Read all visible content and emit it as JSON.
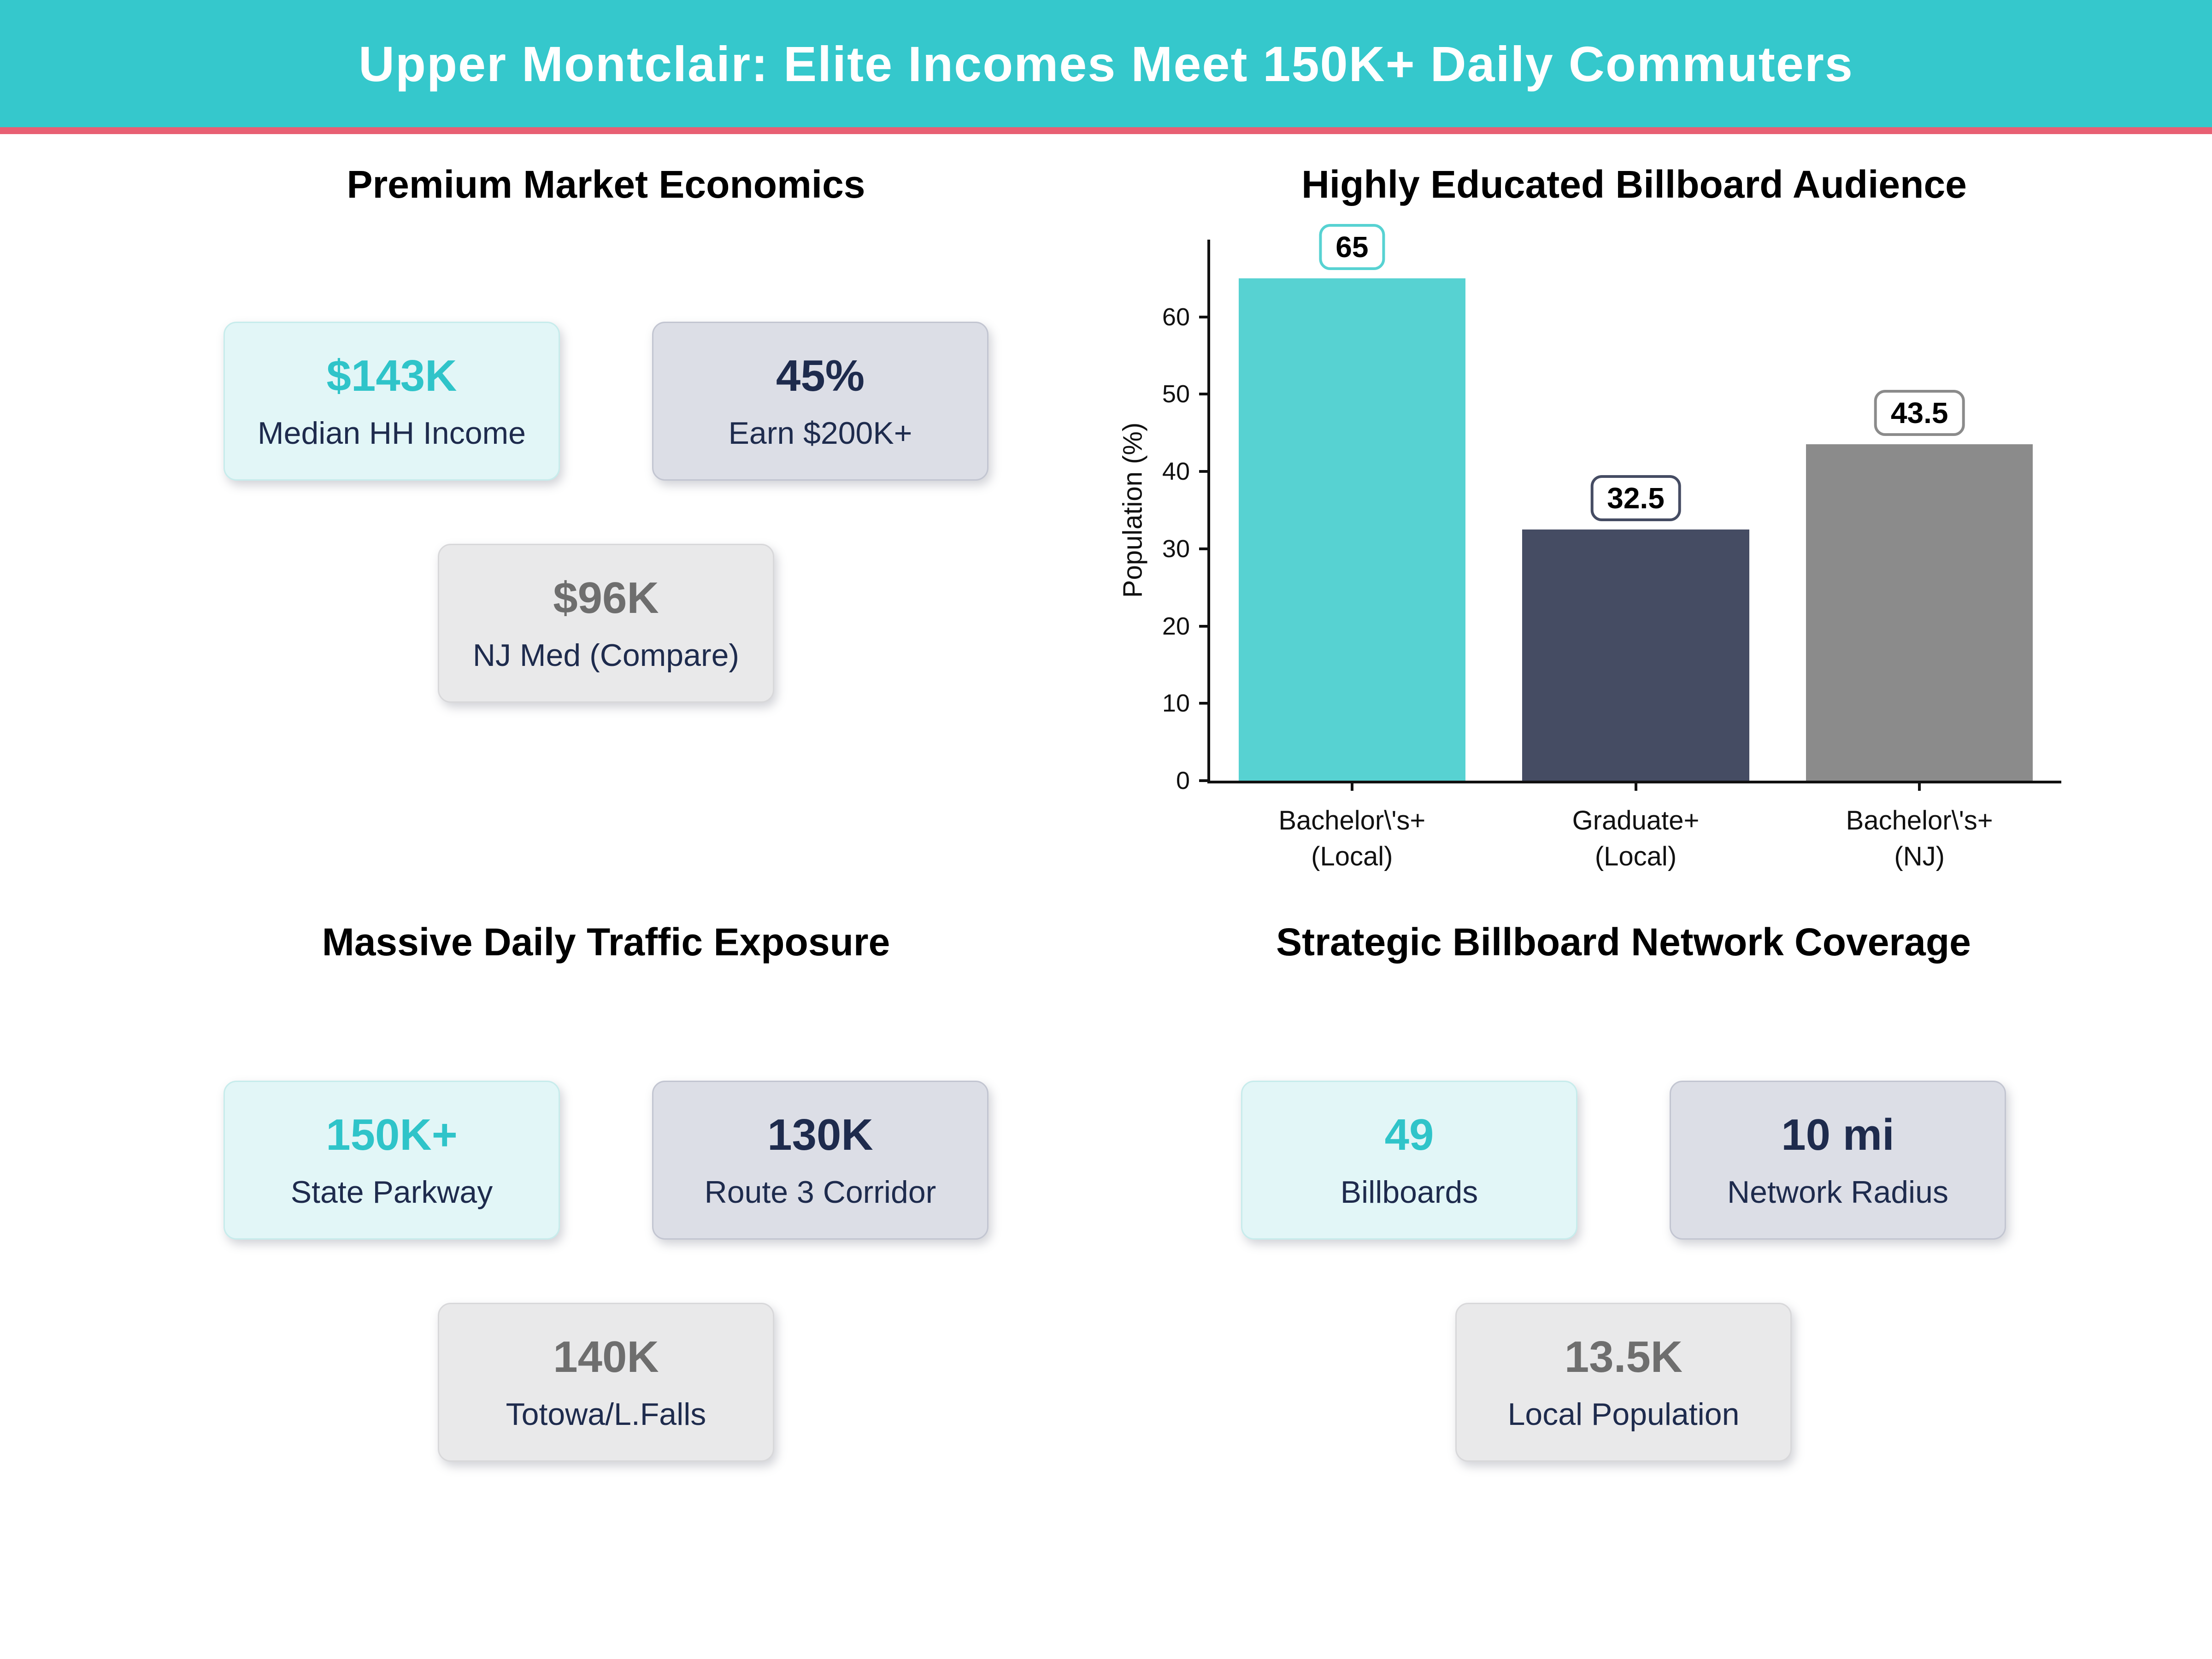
{
  "header": {
    "title": "Upper Montclair: Elite Incomes Meet 150K+ Daily Commuters",
    "bg_color": "#35c8cc",
    "accent_color": "#e85f73"
  },
  "colors": {
    "teal_value": "#2fc4c9",
    "navy_text": "#1e2b4d",
    "gray_value": "#6e6e6e",
    "mint_card_bg": "#e2f6f7",
    "slate_card_bg": "#dcdee6",
    "gray_card_bg": "#e9e9ea"
  },
  "sections": {
    "economics": {
      "title": "Premium Market Economics",
      "cards": [
        {
          "value": "$143K",
          "label": "Median HH Income"
        },
        {
          "value": "45%",
          "label": "Earn $200K+"
        },
        {
          "value": "$96K",
          "label": "NJ Med (Compare)"
        }
      ]
    },
    "traffic": {
      "title": "Massive Daily Traffic Exposure",
      "cards": [
        {
          "value": "150K+",
          "label": "State Parkway"
        },
        {
          "value": "130K",
          "label": "Route 3 Corridor"
        },
        {
          "value": "140K",
          "label": "Totowa/L.Falls"
        }
      ]
    },
    "coverage": {
      "title": "Strategic Billboard Network Coverage",
      "cards": [
        {
          "value": "49",
          "label": "Billboards"
        },
        {
          "value": "10 mi",
          "label": "Network Radius"
        },
        {
          "value": "13.5K",
          "label": "Local Population"
        }
      ]
    }
  },
  "chart_data": {
    "type": "bar",
    "title": "Highly Educated Billboard Audience",
    "categories": [
      "Bachelor\\'s+\n(Local)",
      "Graduate+\n(Local)",
      "Bachelor\\'s+\n(NJ)"
    ],
    "values": [
      65,
      32.5,
      43.5
    ],
    "colors": [
      "#57d2d2",
      "#454c63",
      "#8b8b8b"
    ],
    "xlabel": "",
    "ylabel": "Population (%)",
    "yticks": [
      0,
      10,
      20,
      30,
      40,
      50,
      60
    ],
    "ylim": [
      0,
      70
    ],
    "grid": false,
    "legend": "none",
    "value_label_style": "boxed, border matches bar color"
  }
}
